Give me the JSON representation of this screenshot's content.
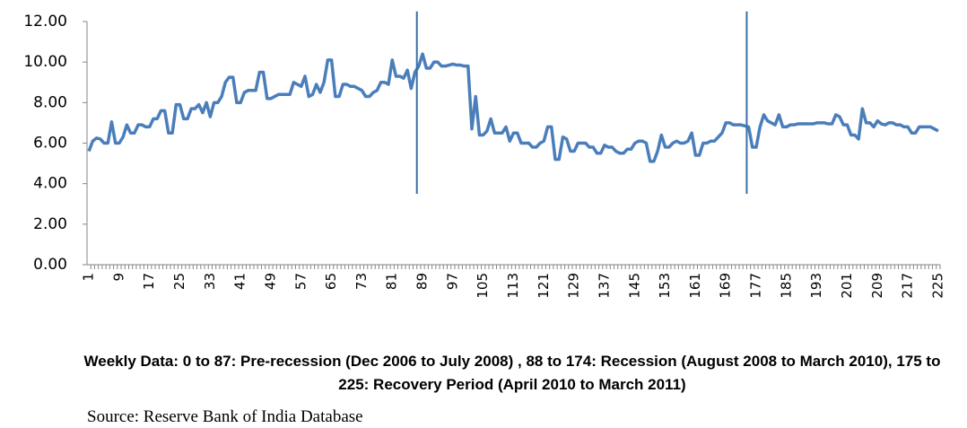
{
  "chart_data": {
    "type": "line",
    "x": [
      1,
      2,
      3,
      4,
      5,
      6,
      7,
      8,
      9,
      10,
      11,
      12,
      13,
      14,
      15,
      16,
      17,
      18,
      19,
      20,
      21,
      22,
      23,
      24,
      25,
      26,
      27,
      28,
      29,
      30,
      31,
      32,
      33,
      34,
      35,
      36,
      37,
      38,
      39,
      40,
      41,
      42,
      43,
      44,
      45,
      46,
      47,
      48,
      49,
      50,
      51,
      52,
      53,
      54,
      55,
      56,
      57,
      58,
      59,
      60,
      61,
      62,
      63,
      64,
      65,
      66,
      67,
      68,
      69,
      70,
      71,
      72,
      73,
      74,
      75,
      76,
      77,
      78,
      79,
      80,
      81,
      82,
      83,
      84,
      85,
      86,
      87,
      88,
      89,
      90,
      91,
      92,
      93,
      94,
      95,
      96,
      97,
      98,
      99,
      100,
      101,
      102,
      103,
      104,
      105,
      106,
      107,
      108,
      109,
      110,
      111,
      112,
      113,
      114,
      115,
      116,
      117,
      118,
      119,
      120,
      121,
      122,
      123,
      124,
      125,
      126,
      127,
      128,
      129,
      130,
      131,
      132,
      133,
      134,
      135,
      136,
      137,
      138,
      139,
      140,
      141,
      142,
      143,
      144,
      145,
      146,
      147,
      148,
      149,
      150,
      151,
      152,
      153,
      154,
      155,
      156,
      157,
      158,
      159,
      160,
      161,
      162,
      163,
      164,
      165,
      166,
      167,
      168,
      169,
      170,
      171,
      172,
      173,
      174,
      175,
      176,
      177,
      178,
      179,
      180,
      181,
      182,
      183,
      184,
      185,
      186,
      187,
      188,
      189,
      190,
      191,
      192,
      193,
      194,
      195,
      196,
      197,
      198,
      199,
      200,
      201,
      202,
      203,
      204,
      205,
      206,
      207,
      208,
      209,
      210,
      211,
      212,
      213,
      214,
      215,
      216,
      217,
      218,
      219,
      220,
      221,
      222,
      223,
      224,
      225
    ],
    "series": [
      {
        "color": "#4a7ebb",
        "values": [
          5.6,
          6.1,
          6.25,
          6.2,
          6.0,
          6.0,
          7.05,
          6.0,
          6.0,
          6.3,
          6.9,
          6.5,
          6.5,
          6.9,
          6.9,
          6.8,
          6.8,
          7.2,
          7.2,
          7.6,
          7.6,
          6.5,
          6.5,
          7.9,
          7.9,
          7.2,
          7.2,
          7.7,
          7.7,
          7.9,
          7.5,
          8.0,
          7.3,
          8.0,
          8.0,
          8.3,
          9.0,
          9.25,
          9.25,
          8.0,
          8.0,
          8.5,
          8.6,
          8.6,
          8.6,
          9.5,
          9.5,
          8.2,
          8.2,
          8.3,
          8.4,
          8.4,
          8.4,
          8.4,
          9.0,
          8.9,
          8.8,
          9.3,
          8.3,
          8.4,
          8.9,
          8.5,
          9.0,
          10.1,
          10.1,
          8.3,
          8.3,
          8.9,
          8.9,
          8.8,
          8.8,
          8.7,
          8.6,
          8.3,
          8.3,
          8.5,
          8.6,
          9.0,
          9.0,
          8.9,
          10.1,
          9.3,
          9.3,
          9.2,
          9.6,
          8.7,
          9.5,
          9.8,
          10.4,
          9.7,
          9.7,
          10.0,
          10.0,
          9.8,
          9.8,
          9.85,
          9.9,
          9.85,
          9.85,
          9.8,
          9.8,
          6.7,
          8.3,
          6.4,
          6.4,
          6.6,
          7.2,
          6.5,
          6.5,
          6.5,
          6.8,
          6.1,
          6.5,
          6.5,
          6.0,
          6.0,
          6.0,
          5.8,
          5.8,
          6.0,
          6.1,
          6.8,
          6.8,
          5.2,
          5.2,
          6.3,
          6.2,
          5.6,
          5.6,
          6.0,
          6.0,
          6.0,
          5.8,
          5.8,
          5.5,
          5.5,
          5.9,
          5.8,
          5.8,
          5.6,
          5.5,
          5.5,
          5.7,
          5.7,
          6.0,
          6.1,
          6.1,
          6.0,
          5.1,
          5.1,
          5.6,
          6.4,
          5.8,
          5.8,
          6.0,
          6.1,
          6.0,
          6.0,
          6.1,
          6.5,
          5.4,
          5.4,
          6.0,
          6.0,
          6.1,
          6.1,
          6.3,
          6.5,
          7.0,
          7.0,
          6.9,
          6.9,
          6.9,
          6.85,
          6.8,
          5.8,
          5.8,
          6.8,
          7.4,
          7.1,
          7.0,
          6.9,
          7.4,
          6.8,
          6.8,
          6.9,
          6.9,
          6.95,
          6.95,
          6.95,
          6.95,
          6.95,
          7.0,
          7.0,
          7.0,
          6.95,
          6.95,
          7.4,
          7.3,
          6.9,
          6.9,
          6.4,
          6.4,
          6.2,
          7.7,
          7.0,
          7.0,
          6.8,
          7.1,
          6.95,
          6.9,
          7.0,
          7.0,
          6.9,
          6.9,
          6.8,
          6.8,
          6.5,
          6.5,
          6.8,
          6.8,
          6.8,
          6.8,
          6.7,
          6.6
        ]
      }
    ],
    "xlim": [
      0.5,
      225.5
    ],
    "xticks": [
      1,
      9,
      17,
      25,
      33,
      41,
      49,
      57,
      65,
      73,
      81,
      89,
      97,
      105,
      113,
      121,
      129,
      137,
      145,
      153,
      161,
      169,
      177,
      185,
      193,
      201,
      209,
      217,
      225
    ],
    "ylim": [
      0,
      12
    ],
    "yticks": [
      {
        "value": 0,
        "label": "0.00"
      },
      {
        "value": 2,
        "label": "2.00"
      },
      {
        "value": 4,
        "label": "4.00"
      },
      {
        "value": 6,
        "label": "6.00"
      },
      {
        "value": 8,
        "label": "8.00"
      },
      {
        "value": 10,
        "label": "10.00"
      },
      {
        "value": 12,
        "label": "12.00"
      }
    ],
    "vertical_lines": [
      {
        "x": 87.5,
        "y": [
          3.5,
          12.5
        ]
      },
      {
        "x": 174.5,
        "y": [
          3.5,
          12.5
        ]
      }
    ],
    "vertical_line_color": "#3b6fa8",
    "caption": "Weekly Data: 0 to 87: Pre-recession (Dec 2006 to July 2008) , 88 to 174: Recession (August 2008 to March 2010), 175 to 225: Recovery Period (April 2010 to March 2011)",
    "source": "Source: Reserve Bank of India Database"
  }
}
